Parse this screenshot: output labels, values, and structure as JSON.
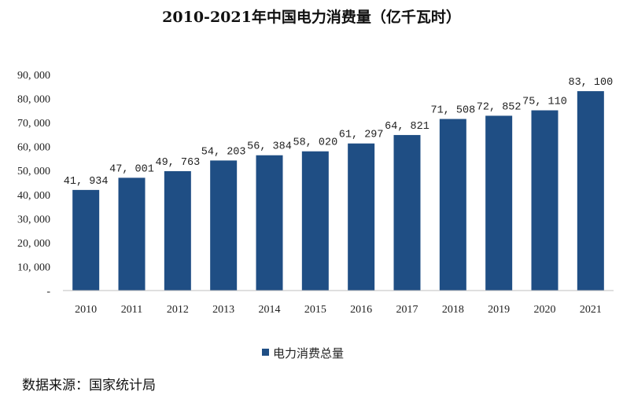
{
  "chart_data": {
    "type": "bar",
    "title": "2010-2021年中国电力消费量（亿千瓦时）",
    "categories": [
      "2010",
      "2011",
      "2012",
      "2013",
      "2014",
      "2015",
      "2016",
      "2017",
      "2018",
      "2019",
      "2020",
      "2021"
    ],
    "series": [
      {
        "name": "电力消费总量",
        "values": [
          41934,
          47001,
          49763,
          54203,
          56384,
          58020,
          61297,
          64821,
          71508,
          72852,
          75110,
          83100
        ],
        "labels": [
          "41, 934",
          "47, 001",
          "49, 763",
          "54, 203",
          "56, 384",
          "58, 020",
          "61, 297",
          "64, 821",
          "71, 508",
          "72, 852",
          "75, 110",
          "83, 100"
        ],
        "color": "#1f4e84"
      }
    ],
    "ylim": [
      0,
      90000
    ],
    "yticks": [
      "-",
      "10, 000",
      "20, 000",
      "30, 000",
      "40, 000",
      "50, 000",
      "60, 000",
      "70, 000",
      "80, 000",
      "90, 000"
    ],
    "xlabel": "",
    "ylabel": "",
    "grid": false,
    "legend": "bottom-center"
  },
  "source_text": "数据来源：国家统计局"
}
